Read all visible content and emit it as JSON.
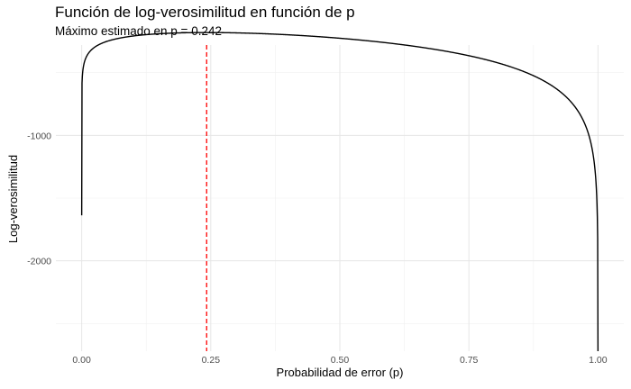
{
  "chart_data": {
    "type": "line",
    "title": "Función de log-verosimilitud en función de p",
    "subtitle": "Máximo estimado en p = 0.242",
    "xlabel": "Probabilidad de error (p)",
    "ylabel": "Log-verosimilitud",
    "xlim": [
      -0.05,
      1.05
    ],
    "ylim": [
      -2720,
      -280
    ],
    "x_ticks": [
      0.0,
      0.25,
      0.5,
      0.75,
      1.0
    ],
    "x_tick_labels": [
      "0.00",
      "0.25",
      "0.50",
      "0.75",
      "1.00"
    ],
    "y_ticks": [
      -2000,
      -1000
    ],
    "y_tick_labels": [
      "-2000",
      "-1000"
    ],
    "grid": true,
    "vline": {
      "x": 0.242,
      "color": "#ff0000",
      "style": "dashed"
    },
    "series": [
      {
        "color": "#000000",
        "model": {
          "k": 79,
          "n": 326
        },
        "x": [
          0.0001,
          0.0005,
          0.001,
          0.005,
          0.01,
          0.02,
          0.05,
          0.1,
          0.15,
          0.2,
          0.242,
          0.3,
          0.35,
          0.4,
          0.45,
          0.5,
          0.55,
          0.6,
          0.65,
          0.7,
          0.75,
          0.8,
          0.85,
          0.9,
          0.95,
          0.97,
          0.99,
          0.995,
          0.999,
          0.9995,
          0.9999
        ],
        "y": [
          -727,
          -600,
          -546,
          -421,
          -368,
          -315,
          -251,
          -212,
          -193,
          -183,
          -180,
          -183,
          -189,
          -198,
          -210,
          -226,
          -244,
          -267,
          -294,
          -326,
          -365,
          -413,
          -474,
          -557,
          -685,
          -775,
          -949,
          -1046,
          -1266,
          -1389,
          -2000
        ]
      }
    ]
  }
}
